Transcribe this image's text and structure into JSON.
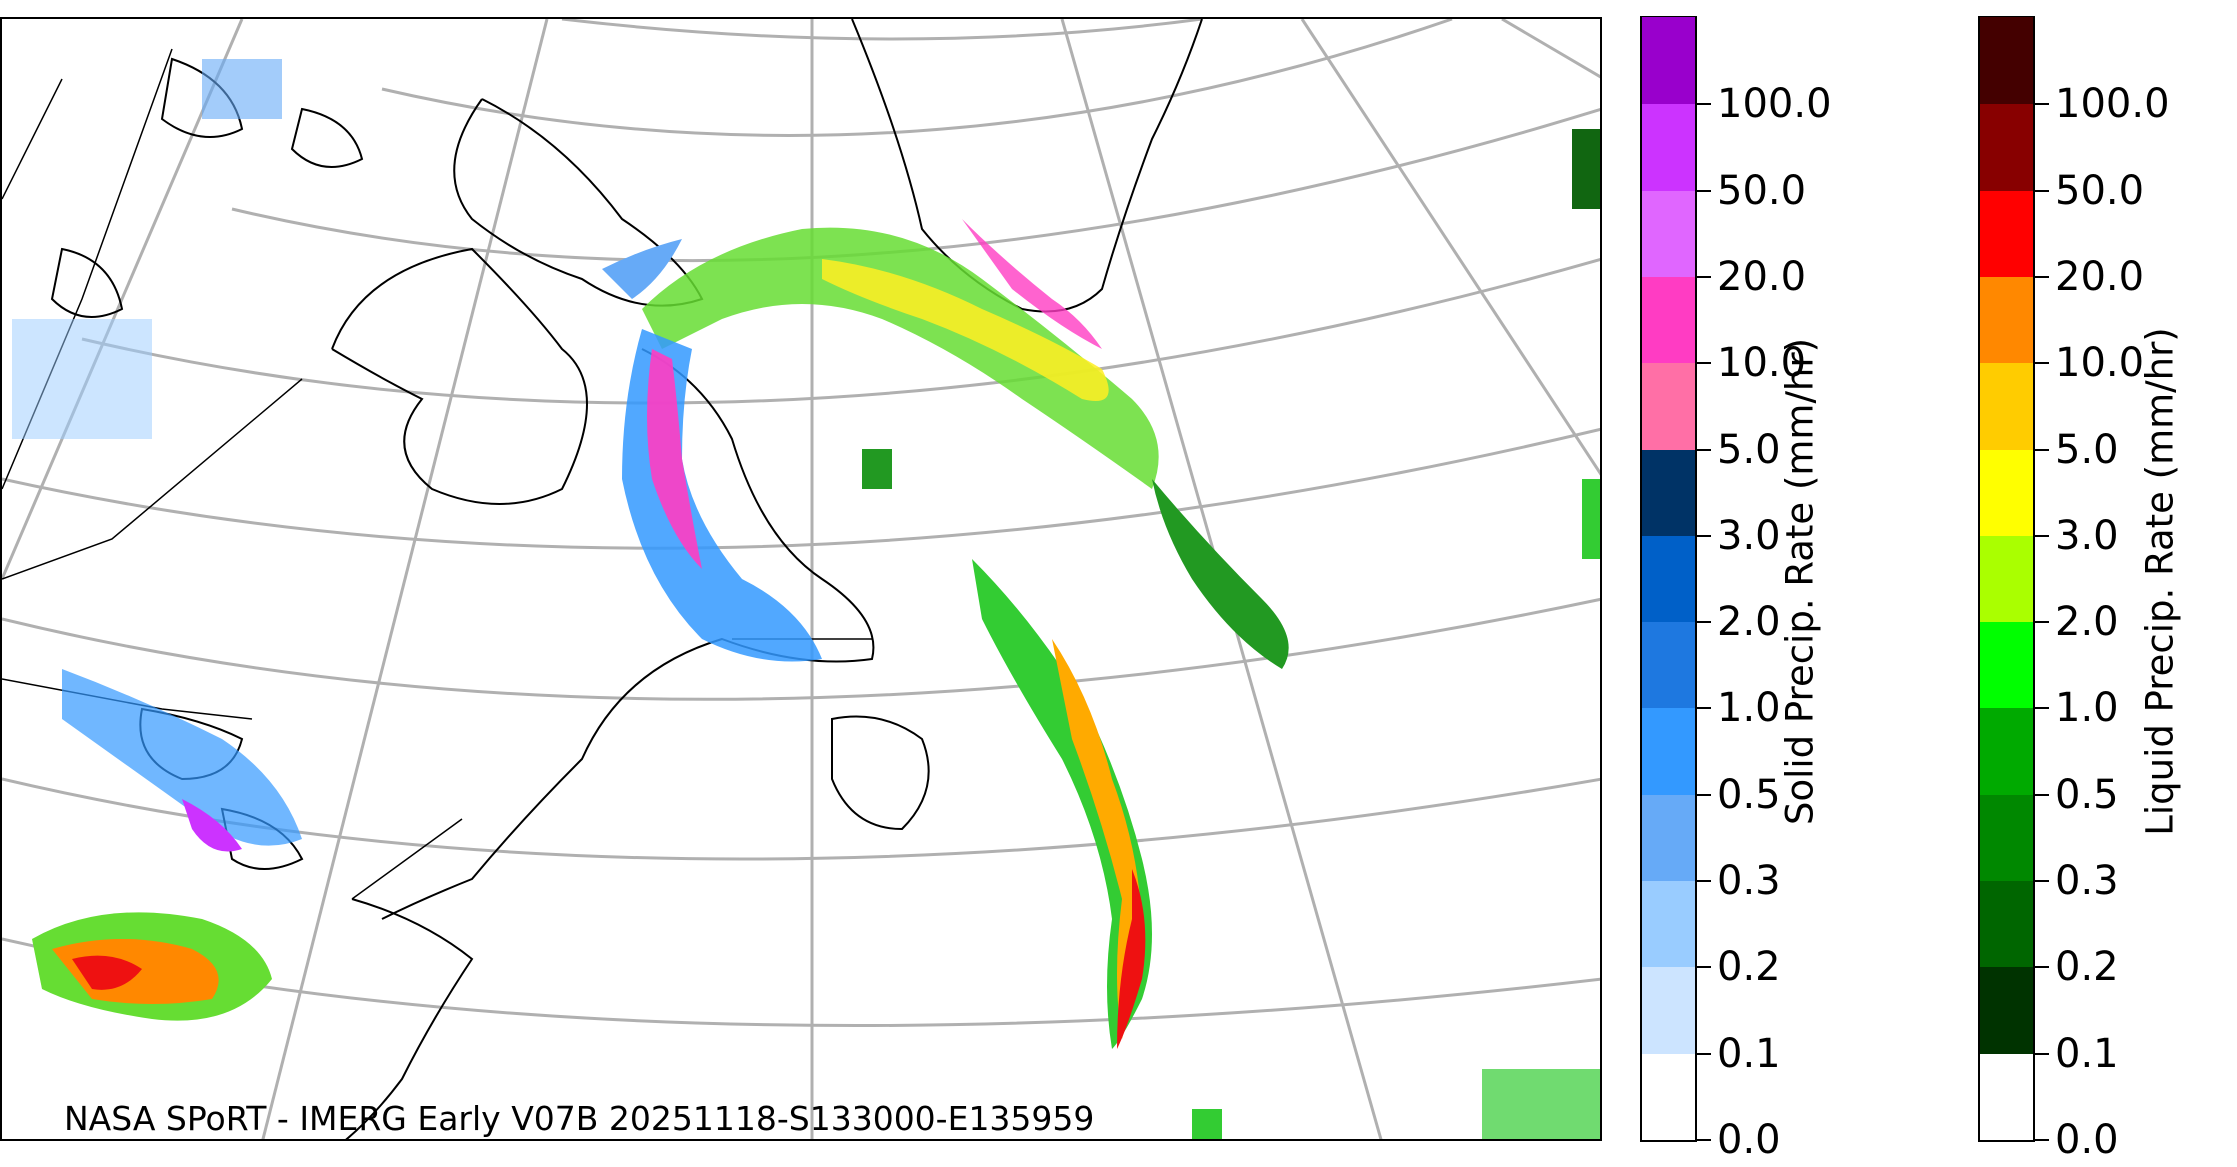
{
  "credit": "NASA SPoRT - IMERG Early V07B 20251118-S133000-E135959",
  "solid_colorbar": {
    "title": "Solid Precip. Rate (mm/hr)",
    "ticks": [
      "0.0",
      "0.1",
      "0.2",
      "0.3",
      "0.5",
      "1.0",
      "2.0",
      "3.0",
      "5.0",
      "10.0",
      "20.0",
      "50.0",
      "100.0"
    ],
    "colors": [
      "#ffffff",
      "#cce4ff",
      "#99ccff",
      "#66aaf7",
      "#3399ff",
      "#1e78e0",
      "#0060c8",
      "#003366",
      "#ff6fa6",
      "#ff3cc3",
      "#e066ff",
      "#cc33ff",
      "#9900cc"
    ]
  },
  "liquid_colorbar": {
    "title": "Liquid Precip. Rate (mm/hr)",
    "ticks": [
      "0.0",
      "0.1",
      "0.2",
      "0.3",
      "0.5",
      "1.0",
      "2.0",
      "3.0",
      "5.0",
      "10.0",
      "20.0",
      "50.0",
      "100.0"
    ],
    "colors": [
      "#ffffff",
      "#003300",
      "#006600",
      "#008800",
      "#00aa00",
      "#00ff00",
      "#aaff00",
      "#ffff00",
      "#ffcc00",
      "#ff8800",
      "#ff0000",
      "#880000",
      "#440000"
    ]
  }
}
